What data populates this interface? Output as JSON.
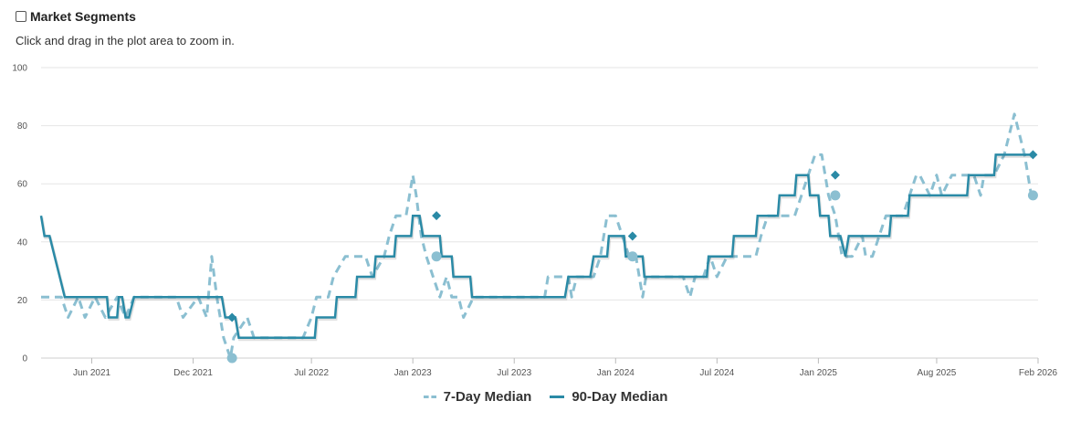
{
  "header": {
    "title": "Market Segments",
    "checked": false
  },
  "subtitle": "Click and drag in the plot area to zoom in.",
  "colors": {
    "seven_day": "#8bbfd1",
    "ninety_day": "#2a8aa6",
    "grid": "#e6e6e6"
  },
  "chart_data": {
    "type": "line",
    "x_range": [
      "2021-03",
      "2026-02"
    ],
    "ylim": [
      0,
      100
    ],
    "y_ticks": [
      0,
      20,
      40,
      60,
      80,
      100
    ],
    "x_ticks": [
      {
        "label": "Jun 2021",
        "at": 3
      },
      {
        "label": "Dec 2021",
        "at": 9
      },
      {
        "label": "Jul 2022",
        "at": 16
      },
      {
        "label": "Jan 2023",
        "at": 22
      },
      {
        "label": "Jul 2023",
        "at": 28
      },
      {
        "label": "Jan 2024",
        "at": 34
      },
      {
        "label": "Jul 2024",
        "at": 40
      },
      {
        "label": "Jan 2025",
        "at": 46
      },
      {
        "label": "Aug 2025",
        "at": 53
      },
      {
        "label": "Feb 2026",
        "at": 59
      }
    ],
    "legend": [
      "7-Day Median",
      "90-Day Median"
    ],
    "legend_position": "bottom-center",
    "series": [
      {
        "name": "7-Day Median",
        "style": "dashed",
        "points": [
          [
            0,
            21
          ],
          [
            1.2,
            21
          ],
          [
            1.6,
            14
          ],
          [
            2.2,
            21
          ],
          [
            2.6,
            14
          ],
          [
            3.2,
            21
          ],
          [
            3.8,
            14
          ],
          [
            4.5,
            21
          ],
          [
            5,
            14
          ],
          [
            5.5,
            21
          ],
          [
            8,
            21
          ],
          [
            8.4,
            14
          ],
          [
            9.3,
            21
          ],
          [
            9.8,
            14
          ],
          [
            10.1,
            35
          ],
          [
            10.4,
            21
          ],
          [
            10.8,
            7
          ],
          [
            11.2,
            0
          ],
          [
            11.4,
            7
          ],
          [
            12.2,
            14
          ],
          [
            12.6,
            7
          ],
          [
            15.5,
            7
          ],
          [
            16,
            14
          ],
          [
            16.3,
            21
          ],
          [
            17,
            21
          ],
          [
            17.3,
            28
          ],
          [
            18,
            35
          ],
          [
            19.2,
            35
          ],
          [
            19.6,
            28
          ],
          [
            20.3,
            35
          ],
          [
            20.6,
            42
          ],
          [
            21,
            49
          ],
          [
            21.6,
            49
          ],
          [
            22,
            63
          ],
          [
            22.2,
            56
          ],
          [
            22.5,
            42
          ],
          [
            22.8,
            35
          ],
          [
            23.2,
            28
          ],
          [
            23.6,
            21
          ],
          [
            24,
            28
          ],
          [
            24.3,
            21
          ],
          [
            24.7,
            21
          ],
          [
            25,
            14
          ],
          [
            25.6,
            21
          ],
          [
            29.8,
            21
          ],
          [
            30,
            28
          ],
          [
            31.2,
            28
          ],
          [
            31.4,
            21
          ],
          [
            31.7,
            28
          ],
          [
            32.2,
            28
          ],
          [
            32.7,
            28
          ],
          [
            33.1,
            35
          ],
          [
            33.5,
            49
          ],
          [
            34,
            49
          ],
          [
            34.4,
            42
          ],
          [
            34.8,
            35
          ],
          [
            35.2,
            35
          ],
          [
            35.6,
            21
          ],
          [
            35.8,
            28
          ],
          [
            38,
            28
          ],
          [
            38.4,
            21
          ],
          [
            38.7,
            28
          ],
          [
            39.2,
            28
          ],
          [
            39.6,
            35
          ],
          [
            40,
            28
          ],
          [
            40.6,
            35
          ],
          [
            42.3,
            35
          ],
          [
            42.6,
            42
          ],
          [
            43,
            49
          ],
          [
            44.6,
            49
          ],
          [
            45,
            56
          ],
          [
            45.4,
            63
          ],
          [
            45.8,
            70
          ],
          [
            46.2,
            70
          ],
          [
            46.6,
            56
          ],
          [
            47,
            49
          ],
          [
            47.4,
            35
          ],
          [
            48,
            35
          ],
          [
            48.6,
            42
          ],
          [
            48.8,
            35
          ],
          [
            49.2,
            35
          ],
          [
            49.6,
            42
          ],
          [
            50,
            49
          ],
          [
            51,
            49
          ],
          [
            51.4,
            56
          ],
          [
            51.8,
            63
          ],
          [
            52,
            63
          ],
          [
            52.6,
            56
          ],
          [
            53,
            63
          ],
          [
            53.3,
            56
          ],
          [
            53.9,
            63
          ],
          [
            55.2,
            63
          ],
          [
            55.6,
            56
          ],
          [
            55.8,
            63
          ],
          [
            56.4,
            63
          ],
          [
            57,
            70
          ],
          [
            57.6,
            84
          ],
          [
            58.2,
            70
          ],
          [
            58.6,
            56
          ]
        ],
        "end_marker": {
          "x": 58.7,
          "y": 56
        },
        "annotations": [
          {
            "x": 11.3,
            "y": 0
          },
          {
            "x": 23.4,
            "y": 35
          },
          {
            "x": 35.0,
            "y": 35
          },
          {
            "x": 47.0,
            "y": 56
          }
        ]
      },
      {
        "name": "90-Day Median",
        "style": "solid",
        "points": [
          [
            0,
            49
          ],
          [
            0.2,
            42
          ],
          [
            0.5,
            42
          ],
          [
            0.8,
            35
          ],
          [
            1.1,
            28
          ],
          [
            1.4,
            21
          ],
          [
            3.9,
            21
          ],
          [
            4,
            14
          ],
          [
            4.5,
            14
          ],
          [
            4.6,
            21
          ],
          [
            4.8,
            21
          ],
          [
            5,
            14
          ],
          [
            5.2,
            14
          ],
          [
            5.5,
            21
          ],
          [
            10.7,
            21
          ],
          [
            10.9,
            14
          ],
          [
            11.5,
            14
          ],
          [
            11.7,
            7
          ],
          [
            16.2,
            7
          ],
          [
            16.3,
            14
          ],
          [
            17.4,
            14
          ],
          [
            17.5,
            21
          ],
          [
            18.6,
            21
          ],
          [
            18.7,
            28
          ],
          [
            19.7,
            28
          ],
          [
            19.8,
            35
          ],
          [
            20.9,
            35
          ],
          [
            21,
            42
          ],
          [
            21.9,
            42
          ],
          [
            22,
            49
          ],
          [
            22.4,
            49
          ],
          [
            22.6,
            42
          ],
          [
            23.6,
            42
          ],
          [
            23.7,
            35
          ],
          [
            24.3,
            35
          ],
          [
            24.4,
            28
          ],
          [
            25.4,
            28
          ],
          [
            25.5,
            21
          ],
          [
            31,
            21
          ],
          [
            31.2,
            28
          ],
          [
            32.2,
            28
          ],
          [
            32.3,
            28
          ],
          [
            32.5,
            28
          ],
          [
            32.7,
            35
          ],
          [
            33.5,
            35
          ],
          [
            33.6,
            42
          ],
          [
            34.5,
            42
          ],
          [
            34.6,
            35
          ],
          [
            35.6,
            35
          ],
          [
            35.7,
            28
          ],
          [
            39.4,
            28
          ],
          [
            39.5,
            35
          ],
          [
            40.9,
            35
          ],
          [
            41,
            42
          ],
          [
            42.3,
            42
          ],
          [
            42.4,
            49
          ],
          [
            43.6,
            49
          ],
          [
            43.7,
            56
          ],
          [
            44.6,
            56
          ],
          [
            44.7,
            63
          ],
          [
            45.4,
            63
          ],
          [
            45.5,
            56
          ],
          [
            46,
            56
          ],
          [
            46.1,
            49
          ],
          [
            46.6,
            49
          ],
          [
            46.7,
            42
          ],
          [
            47.3,
            42
          ],
          [
            47.6,
            35
          ],
          [
            47.8,
            42
          ],
          [
            50.2,
            42
          ],
          [
            50.3,
            49
          ],
          [
            51.3,
            49
          ],
          [
            51.4,
            56
          ],
          [
            54.8,
            56
          ],
          [
            54.9,
            63
          ],
          [
            56.4,
            63
          ],
          [
            56.5,
            70
          ],
          [
            58.6,
            70
          ]
        ],
        "end_marker": {
          "x": 58.7,
          "y": 70
        },
        "annotations": [
          {
            "x": 11.3,
            "y": 14
          },
          {
            "x": 23.4,
            "y": 49
          },
          {
            "x": 35.0,
            "y": 42
          },
          {
            "x": 47.0,
            "y": 63
          }
        ]
      }
    ]
  }
}
